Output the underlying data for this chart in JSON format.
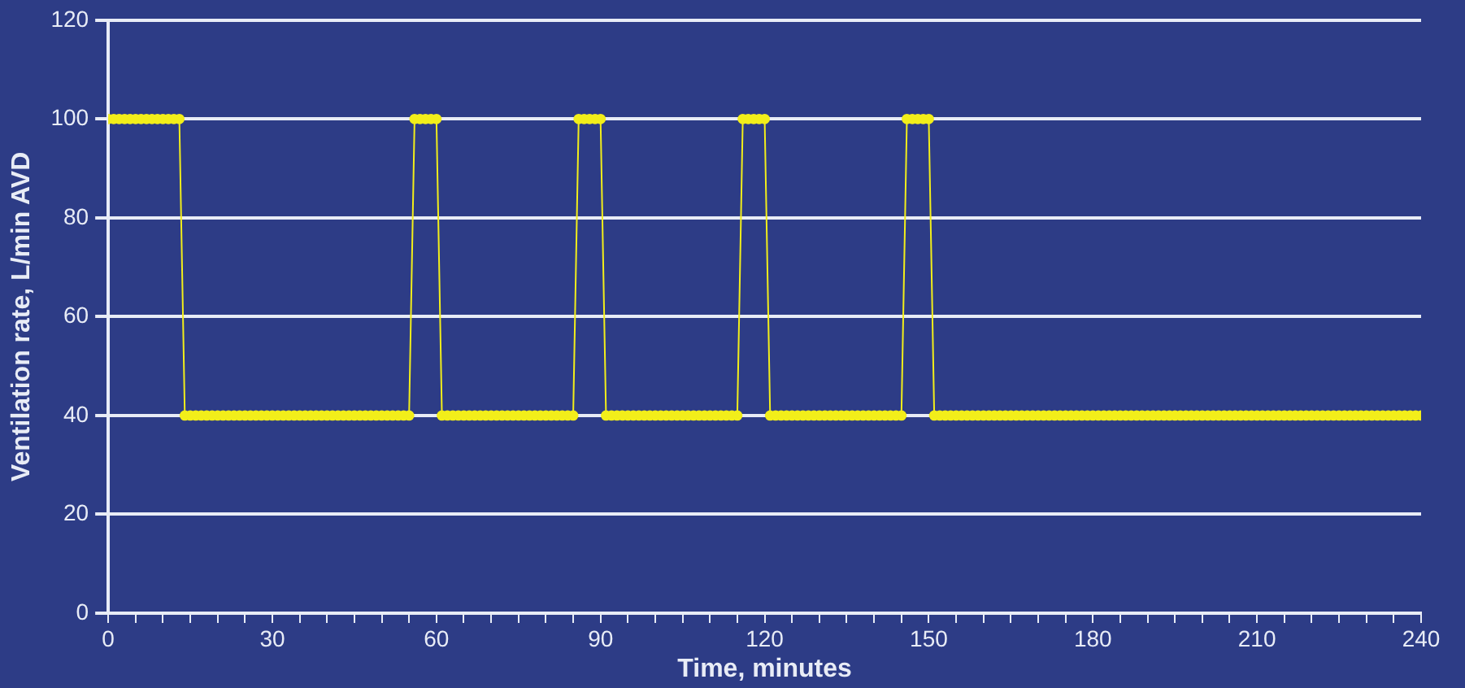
{
  "chart_data": {
    "type": "line",
    "xlabel": "Time, minutes",
    "ylabel": "Ventilation rate, L/min AVD",
    "x": [
      0,
      1,
      2,
      3,
      4,
      5,
      6,
      7,
      8,
      9,
      10,
      11,
      12,
      13,
      14,
      15,
      16,
      17,
      18,
      19,
      20,
      21,
      22,
      23,
      24,
      25,
      26,
      27,
      28,
      29,
      30,
      31,
      32,
      33,
      34,
      35,
      36,
      37,
      38,
      39,
      40,
      41,
      42,
      43,
      44,
      45,
      46,
      47,
      48,
      49,
      50,
      51,
      52,
      53,
      54,
      55,
      56,
      57,
      58,
      59,
      60,
      61,
      62,
      63,
      64,
      65,
      66,
      67,
      68,
      69,
      70,
      71,
      72,
      73,
      74,
      75,
      76,
      77,
      78,
      79,
      80,
      81,
      82,
      83,
      84,
      85,
      86,
      87,
      88,
      89,
      90,
      91,
      92,
      93,
      94,
      95,
      96,
      97,
      98,
      99,
      100,
      101,
      102,
      103,
      104,
      105,
      106,
      107,
      108,
      109,
      110,
      111,
      112,
      113,
      114,
      115,
      116,
      117,
      118,
      119,
      120,
      121,
      122,
      123,
      124,
      125,
      126,
      127,
      128,
      129,
      130,
      131,
      132,
      133,
      134,
      135,
      136,
      137,
      138,
      139,
      140,
      141,
      142,
      143,
      144,
      145,
      146,
      147,
      148,
      149,
      150,
      151,
      152,
      153,
      154,
      155,
      156,
      157,
      158,
      159,
      160,
      161,
      162,
      163,
      164,
      165,
      166,
      167,
      168,
      169,
      170,
      171,
      172,
      173,
      174,
      175,
      176,
      177,
      178,
      179,
      180,
      181,
      182,
      183,
      184,
      185,
      186,
      187,
      188,
      189,
      190,
      191,
      192,
      193,
      194,
      195,
      196,
      197,
      198,
      199,
      200,
      201,
      202,
      203,
      204,
      205,
      206,
      207,
      208,
      209,
      210,
      211,
      212,
      213,
      214,
      215,
      216,
      217,
      218,
      219,
      220,
      221,
      222,
      223,
      224,
      225,
      226,
      227,
      228,
      229,
      230,
      231,
      232,
      233,
      234,
      235,
      236,
      237,
      238,
      239,
      240
    ],
    "series": [
      {
        "color": "#f2ee1a",
        "values": [
          100,
          100,
          100,
          100,
          100,
          100,
          100,
          100,
          100,
          100,
          100,
          100,
          100,
          100,
          40,
          40,
          40,
          40,
          40,
          40,
          40,
          40,
          40,
          40,
          40,
          40,
          40,
          40,
          40,
          40,
          40,
          40,
          40,
          40,
          40,
          40,
          40,
          40,
          40,
          40,
          40,
          40,
          40,
          40,
          40,
          40,
          40,
          40,
          40,
          40,
          40,
          40,
          40,
          40,
          40,
          40,
          100,
          100,
          100,
          100,
          100,
          40,
          40,
          40,
          40,
          40,
          40,
          40,
          40,
          40,
          40,
          40,
          40,
          40,
          40,
          40,
          40,
          40,
          40,
          40,
          40,
          40,
          40,
          40,
          40,
          40,
          100,
          100,
          100,
          100,
          100,
          40,
          40,
          40,
          40,
          40,
          40,
          40,
          40,
          40,
          40,
          40,
          40,
          40,
          40,
          40,
          40,
          40,
          40,
          40,
          40,
          40,
          40,
          40,
          40,
          40,
          100,
          100,
          100,
          100,
          100,
          40,
          40,
          40,
          40,
          40,
          40,
          40,
          40,
          40,
          40,
          40,
          40,
          40,
          40,
          40,
          40,
          40,
          40,
          40,
          40,
          40,
          40,
          40,
          40,
          40,
          100,
          100,
          100,
          100,
          100,
          40,
          40,
          40,
          40,
          40,
          40,
          40,
          40,
          40,
          40,
          40,
          40,
          40,
          40,
          40,
          40,
          40,
          40,
          40,
          40,
          40,
          40,
          40,
          40,
          40,
          40,
          40,
          40,
          40,
          40,
          40,
          40,
          40,
          40,
          40,
          40,
          40,
          40,
          40,
          40,
          40,
          40,
          40,
          40,
          40,
          40,
          40,
          40,
          40,
          40,
          40,
          40,
          40,
          40,
          40,
          40,
          40,
          40,
          40,
          40,
          40,
          40,
          40,
          40,
          40,
          40,
          40,
          40,
          40,
          40,
          40,
          40,
          40,
          40,
          40,
          40,
          40,
          40,
          40,
          40,
          40,
          40,
          40,
          40,
          40,
          40,
          40,
          40,
          40,
          40
        ]
      }
    ],
    "xlim": [
      0,
      240
    ],
    "xticks": [
      0,
      {
        "value": 5,
        "label": null
      },
      {
        "value": 10,
        "label": null
      },
      {
        "value": 15,
        "label": null
      },
      {
        "value": 20,
        "label": null
      },
      {
        "value": 25,
        "label": null
      },
      30,
      {
        "value": 35,
        "label": null
      },
      {
        "value": 40,
        "label": null
      },
      {
        "value": 45,
        "label": null
      },
      {
        "value": 50,
        "label": null
      },
      {
        "value": 55,
        "label": null
      },
      60,
      {
        "value": 65,
        "label": null
      },
      {
        "value": 70,
        "label": null
      },
      {
        "value": 75,
        "label": null
      },
      {
        "value": 80,
        "label": null
      },
      {
        "value": 85,
        "label": null
      },
      90,
      {
        "value": 95,
        "label": null
      },
      {
        "value": 100,
        "label": null
      },
      {
        "value": 105,
        "label": null
      },
      {
        "value": 110,
        "label": null
      },
      {
        "value": 115,
        "label": null
      },
      120,
      {
        "value": 125,
        "label": null
      },
      {
        "value": 130,
        "label": null
      },
      {
        "value": 135,
        "label": null
      },
      {
        "value": 140,
        "label": null
      },
      {
        "value": 145,
        "label": null
      },
      150,
      {
        "value": 155,
        "label": null
      },
      {
        "value": 160,
        "label": null
      },
      {
        "value": 165,
        "label": null
      },
      {
        "value": 170,
        "label": null
      },
      {
        "value": 175,
        "label": null
      },
      180,
      {
        "value": 185,
        "label": null
      },
      {
        "value": 190,
        "label": null
      },
      {
        "value": 195,
        "label": null
      },
      {
        "value": 200,
        "label": null
      },
      {
        "value": 205,
        "label": null
      },
      210,
      {
        "value": 215,
        "label": null
      },
      {
        "value": 220,
        "label": null
      },
      {
        "value": 225,
        "label": null
      },
      {
        "value": 230,
        "label": null
      },
      {
        "value": 235,
        "label": null
      },
      240
    ],
    "ylim": [
      0,
      120
    ],
    "yticks": [
      0,
      20,
      40,
      60,
      80,
      100,
      120
    ],
    "grid": "y",
    "legend": false,
    "marker": "circle",
    "line_style": "solid"
  }
}
